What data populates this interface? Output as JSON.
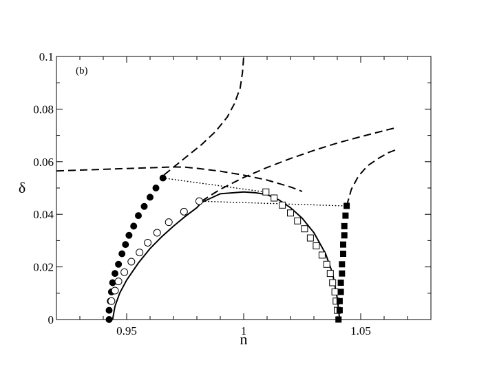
{
  "chart_data": {
    "type": "line",
    "panel_label": "(b)",
    "xlabel": "n",
    "ylabel": "δ",
    "xlim": [
      0.92,
      1.08
    ],
    "ylim": [
      0,
      0.1
    ],
    "xticks": [
      {
        "value": 0.95,
        "label": "0.95"
      },
      {
        "value": 1.0,
        "label": "1"
      },
      {
        "value": 1.05,
        "label": "1.05"
      }
    ],
    "yticks": [
      {
        "value": 0,
        "label": "0"
      },
      {
        "value": 0.02,
        "label": "0.02"
      },
      {
        "value": 0.04,
        "label": "0.04"
      },
      {
        "value": 0.06,
        "label": "0.06"
      },
      {
        "value": 0.08,
        "label": "0.08"
      },
      {
        "value": 0.1,
        "label": "0.1"
      }
    ],
    "grid": false,
    "colors": {
      "ink": "#000000",
      "background": "#ffffff"
    },
    "series": [
      {
        "style": "dashed",
        "points": [
          [
            0.92,
            0.0565
          ],
          [
            0.93,
            0.0568
          ],
          [
            0.94,
            0.0571
          ],
          [
            0.95,
            0.0574
          ],
          [
            0.96,
            0.0577
          ],
          [
            0.97,
            0.058
          ],
          [
            0.975,
            0.0579
          ],
          [
            0.98,
            0.0575
          ],
          [
            0.99,
            0.0564
          ],
          [
            1.0,
            0.0549
          ],
          [
            1.01,
            0.053
          ],
          [
            1.02,
            0.0504
          ],
          [
            1.025,
            0.0487
          ]
        ]
      },
      {
        "style": "dashed",
        "points": [
          [
            0.966,
            0.055
          ],
          [
            0.975,
            0.0615
          ],
          [
            0.982,
            0.0665
          ],
          [
            0.988,
            0.0715
          ],
          [
            0.993,
            0.077
          ],
          [
            0.996,
            0.082
          ],
          [
            0.9985,
            0.088
          ],
          [
            0.9995,
            0.094
          ],
          [
            1.0,
            0.1
          ]
        ]
      },
      {
        "style": "dashed",
        "points": [
          [
            0.982,
            0.045
          ],
          [
            0.99,
            0.0495
          ],
          [
            1.0,
            0.054
          ],
          [
            1.01,
            0.0578
          ],
          [
            1.02,
            0.0612
          ],
          [
            1.03,
            0.0643
          ],
          [
            1.04,
            0.0671
          ],
          [
            1.05,
            0.0695
          ],
          [
            1.06,
            0.0718
          ],
          [
            1.065,
            0.0729
          ]
        ]
      },
      {
        "style": "dashed",
        "points": [
          [
            1.044,
            0.0432
          ],
          [
            1.046,
            0.0495
          ],
          [
            1.049,
            0.0545
          ],
          [
            1.053,
            0.0585
          ],
          [
            1.058,
            0.0615
          ],
          [
            1.062,
            0.0635
          ],
          [
            1.065,
            0.0645
          ]
        ]
      },
      {
        "style": "solid",
        "points": [
          [
            0.944,
            0.0
          ],
          [
            0.945,
            0.005
          ],
          [
            0.947,
            0.01
          ],
          [
            0.95,
            0.015
          ],
          [
            0.955,
            0.0215
          ],
          [
            0.96,
            0.027
          ],
          [
            0.965,
            0.0315
          ],
          [
            0.97,
            0.0355
          ],
          [
            0.975,
            0.0392
          ],
          [
            0.98,
            0.0425
          ],
          [
            0.982,
            0.0445
          ],
          [
            0.99,
            0.0478
          ],
          [
            1.0,
            0.0485
          ],
          [
            1.005,
            0.0482
          ],
          [
            1.01,
            0.0475
          ],
          [
            1.015,
            0.0455
          ],
          [
            1.02,
            0.0425
          ],
          [
            1.025,
            0.0385
          ],
          [
            1.03,
            0.033
          ],
          [
            1.035,
            0.025
          ],
          [
            1.038,
            0.0175
          ],
          [
            1.04,
            0.008
          ],
          [
            1.041,
            0.0
          ]
        ]
      },
      {
        "style": "dotted",
        "points": [
          [
            0.9655,
            0.0538
          ],
          [
            1.009,
            0.0485
          ]
        ]
      },
      {
        "style": "dotted",
        "points": [
          [
            0.981,
            0.045
          ],
          [
            1.043,
            0.0432
          ]
        ]
      },
      {
        "style": "filled-circle",
        "points": [
          [
            0.9425,
            0.0
          ],
          [
            0.9425,
            0.0035
          ],
          [
            0.943,
            0.007
          ],
          [
            0.9435,
            0.0105
          ],
          [
            0.944,
            0.014
          ],
          [
            0.945,
            0.0175
          ],
          [
            0.9465,
            0.021
          ],
          [
            0.948,
            0.025
          ],
          [
            0.9495,
            0.0285
          ],
          [
            0.951,
            0.032
          ],
          [
            0.953,
            0.0355
          ],
          [
            0.955,
            0.0395
          ],
          [
            0.9575,
            0.043
          ],
          [
            0.96,
            0.0465
          ],
          [
            0.9625,
            0.05
          ],
          [
            0.9655,
            0.0538
          ]
        ]
      },
      {
        "style": "open-circle",
        "points": [
          [
            0.9435,
            0.007
          ],
          [
            0.945,
            0.011
          ],
          [
            0.9465,
            0.0145
          ],
          [
            0.949,
            0.018
          ],
          [
            0.952,
            0.022
          ],
          [
            0.9555,
            0.0255
          ],
          [
            0.959,
            0.0292
          ],
          [
            0.963,
            0.033
          ],
          [
            0.968,
            0.037
          ],
          [
            0.9745,
            0.041
          ],
          [
            0.981,
            0.045
          ]
        ]
      },
      {
        "style": "open-square",
        "points": [
          [
            1.0095,
            0.0485
          ],
          [
            1.013,
            0.0462
          ],
          [
            1.0165,
            0.0435
          ],
          [
            1.02,
            0.0405
          ],
          [
            1.023,
            0.0375
          ],
          [
            1.026,
            0.0345
          ],
          [
            1.0285,
            0.031
          ],
          [
            1.031,
            0.028
          ],
          [
            1.0335,
            0.0245
          ],
          [
            1.0355,
            0.021
          ],
          [
            1.037,
            0.0175
          ],
          [
            1.038,
            0.014
          ],
          [
            1.039,
            0.0105
          ],
          [
            1.0395,
            0.007
          ],
          [
            1.04,
            0.0035
          ]
        ]
      },
      {
        "style": "filled-square",
        "points": [
          [
            1.0405,
            0.0
          ],
          [
            1.041,
            0.0035
          ],
          [
            1.041,
            0.007
          ],
          [
            1.0415,
            0.0105
          ],
          [
            1.0415,
            0.014
          ],
          [
            1.042,
            0.0175
          ],
          [
            1.042,
            0.021
          ],
          [
            1.0425,
            0.025
          ],
          [
            1.0425,
            0.0285
          ],
          [
            1.043,
            0.032
          ],
          [
            1.043,
            0.0355
          ],
          [
            1.0435,
            0.0395
          ],
          [
            1.044,
            0.0432
          ]
        ]
      }
    ]
  }
}
